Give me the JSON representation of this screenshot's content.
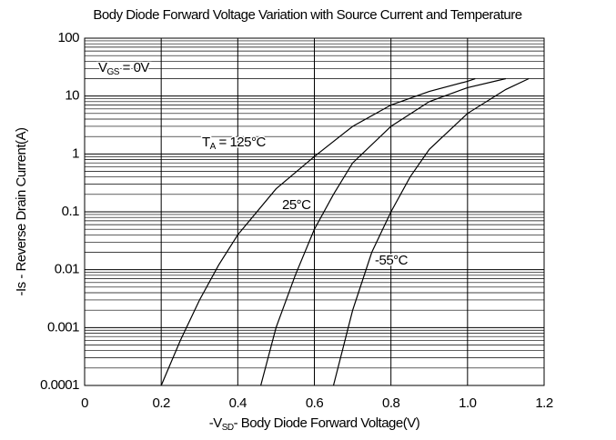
{
  "chart_data": {
    "type": "line",
    "title": "Body Diode Forward Voltage Variation with Source Current and Temperature",
    "x_label": {
      "main": "-V",
      "sub": "SD",
      "rest": "- Body Diode Forward Voltage(V)"
    },
    "y_label": "-Is - Reverse Drain Current(A)",
    "log_y": true,
    "grid": true,
    "xlim": [
      0,
      1.2
    ],
    "xticks": [
      0,
      0.2,
      0.4,
      0.6,
      0.8,
      {
        "value": 1,
        "label": "1.0"
      },
      1.2
    ],
    "ylim": [
      0.0001,
      100
    ],
    "yticks": [
      0.0001,
      0.001,
      0.01,
      0.1,
      1,
      10,
      100
    ],
    "annotations": [
      {
        "main": "V",
        "sub": "GS",
        "rest": " = 0V"
      },
      {
        "main": "T",
        "sub": "A",
        "rest": " = 125°C"
      },
      {
        "main": "25°C"
      },
      {
        "main": "-55°C"
      }
    ],
    "series": [
      {
        "color": "#000000",
        "x": [
          0.2,
          0.25,
          0.3,
          0.35,
          0.4,
          0.5,
          0.6,
          0.7,
          0.8,
          0.9,
          1.0,
          1.02
        ],
        "values": [
          0.0001,
          0.0006,
          0.003,
          0.012,
          0.04,
          0.25,
          0.9,
          3,
          7,
          12,
          18,
          20
        ]
      },
      {
        "color": "#000000",
        "x": [
          0.46,
          0.5,
          0.55,
          0.6,
          0.65,
          0.7,
          0.8,
          0.9,
          1.0,
          1.1
        ],
        "values": [
          0.0001,
          0.001,
          0.008,
          0.05,
          0.2,
          0.7,
          3,
          8,
          14,
          20
        ]
      },
      {
        "color": "#000000",
        "x": [
          0.65,
          0.7,
          0.75,
          0.8,
          0.85,
          0.9,
          1.0,
          1.1,
          1.16
        ],
        "values": [
          0.0001,
          0.002,
          0.02,
          0.1,
          0.4,
          1.2,
          5,
          13,
          20
        ]
      }
    ]
  }
}
